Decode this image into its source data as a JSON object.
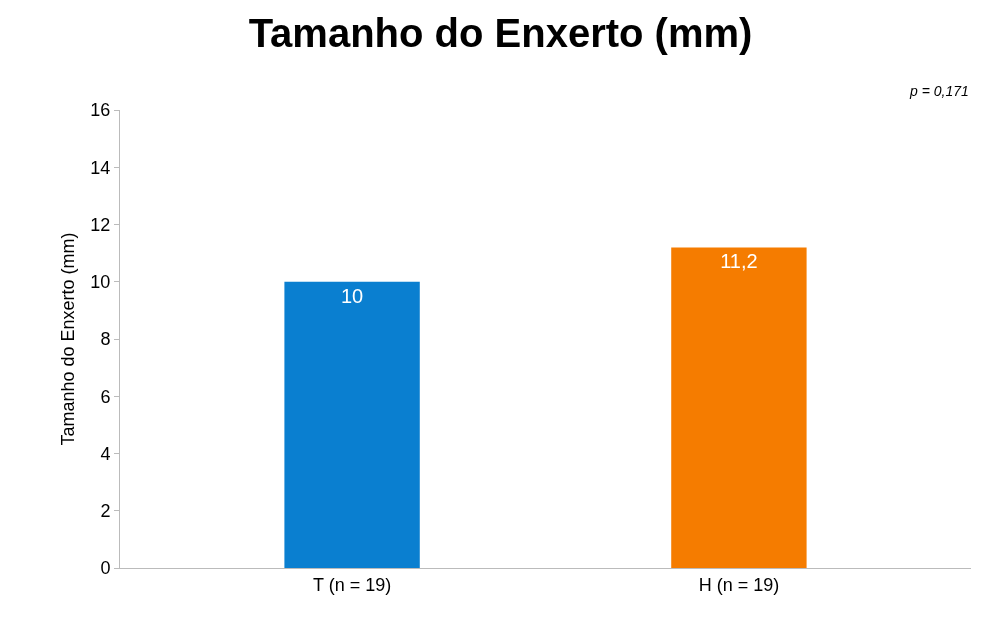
{
  "chart_data": {
    "type": "bar",
    "title": "Tamanho do Enxerto (mm)",
    "ylabel": "Tamanho do Enxerto (mm)",
    "categories": [
      "T (n = 19)",
      "H (n = 19)"
    ],
    "values": [
      10,
      11.2
    ],
    "colors": [
      "#0a7fd0",
      "#f57c00"
    ],
    "value_labels": [
      "10",
      "11,2"
    ],
    "ylim": [
      0,
      16
    ],
    "yticks": [
      0,
      2,
      4,
      6,
      8,
      10,
      12,
      14,
      16
    ],
    "annotations": [
      "p = 0,171"
    ]
  }
}
